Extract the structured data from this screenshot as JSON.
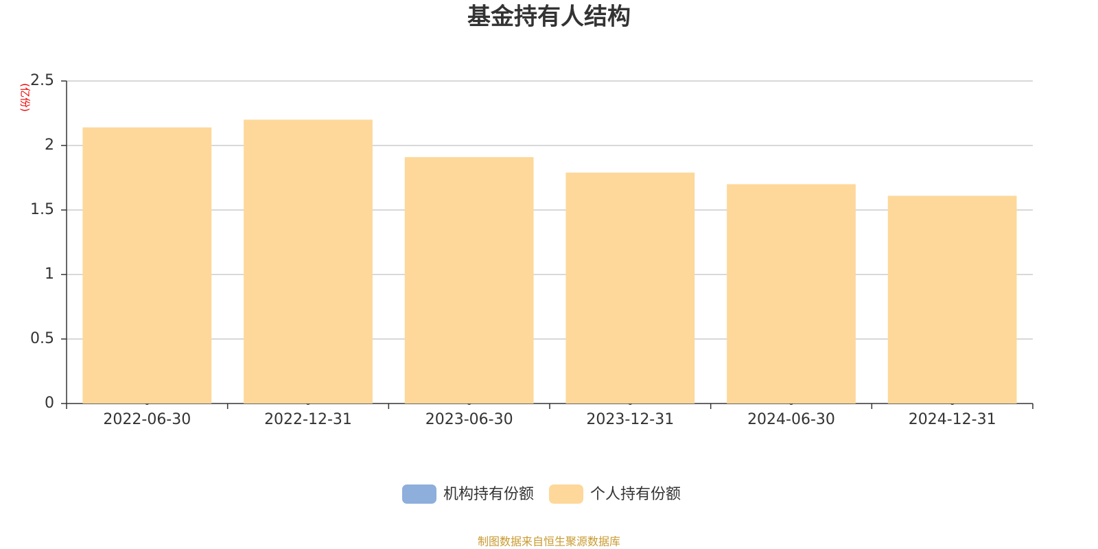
{
  "chart_data": {
    "type": "bar",
    "title": "基金持有人结构",
    "y_label": "(亿份)",
    "categories": [
      "2022-06-30",
      "2022-12-31",
      "2023-06-30",
      "2023-12-31",
      "2024-06-30",
      "2024-12-31"
    ],
    "series": [
      {
        "name": "机构持有份额",
        "color": "#8eaedc",
        "values": [
          0,
          0,
          0,
          0,
          0,
          0
        ]
      },
      {
        "name": "个人持有份额",
        "color": "#fdd89a",
        "values": [
          2.14,
          2.2,
          1.91,
          1.79,
          1.7,
          1.61
        ]
      }
    ],
    "stacked": true,
    "ylim": [
      0,
      2.5
    ],
    "yticks": [
      0,
      0.5,
      1,
      1.5,
      2,
      2.5
    ],
    "grid": true,
    "source": "制图数据来自恒生聚源数据库"
  }
}
